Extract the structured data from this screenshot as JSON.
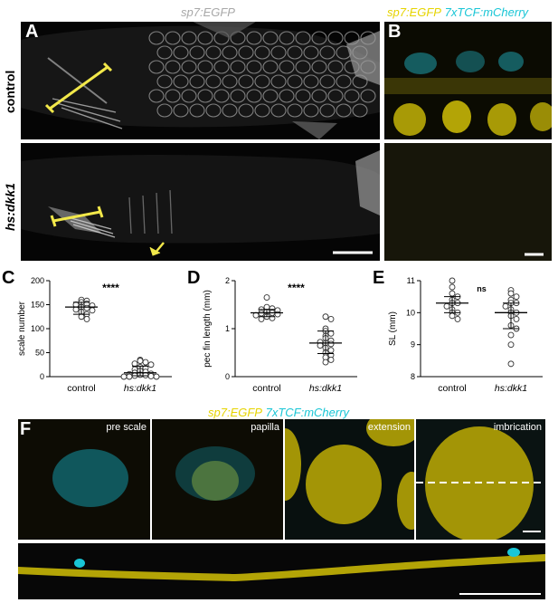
{
  "panel_A": {
    "letter": "A",
    "header": "sp7:EGFP",
    "row_labels": [
      "control",
      "hs:dkk1"
    ]
  },
  "panel_B": {
    "letter": "B",
    "header_part1": "sp7:EGFP",
    "header_part2": "7xTCF:mCherry"
  },
  "panel_F": {
    "letter": "F",
    "header_part1": "sp7:EGFP",
    "header_part2": "7xTCF:mCherry",
    "stages": [
      "pre scale",
      "papilla",
      "extension",
      "imbrication"
    ]
  },
  "colors": {
    "egfp_yellow": "#e6d400",
    "mcherry_cyan": "#19c6d6",
    "scale_bar_yellow": "#f2e84a"
  },
  "chart_data": [
    {
      "panel": "C",
      "type": "scatter",
      "ylabel": "scale number",
      "categories": [
        "control",
        "hs:dkk1"
      ],
      "ylim": [
        0,
        200
      ],
      "yticks": [
        0,
        50,
        100,
        150,
        200
      ],
      "significance": "****",
      "series": [
        {
          "values": [
            160,
            158,
            155,
            152,
            150,
            148,
            145,
            143,
            140,
            138,
            135,
            130,
            125,
            120
          ]
        },
        {
          "values": [
            35,
            33,
            30,
            27,
            25,
            20,
            18,
            15,
            12,
            10,
            8,
            6,
            5,
            4,
            3,
            2,
            1,
            0,
            0,
            0
          ]
        }
      ],
      "summary": [
        {
          "median": 145,
          "q1": 130,
          "q3": 155
        },
        {
          "median": 8,
          "q1": 2,
          "q3": 22
        }
      ]
    },
    {
      "panel": "D",
      "type": "scatter",
      "ylabel": "pec fin length (mm)",
      "categories": [
        "control",
        "hs:dkk1"
      ],
      "ylim": [
        0,
        2
      ],
      "yticks": [
        0,
        1,
        2
      ],
      "significance": "****",
      "series": [
        {
          "values": [
            1.65,
            1.45,
            1.42,
            1.4,
            1.38,
            1.35,
            1.33,
            1.32,
            1.3,
            1.28,
            1.25,
            1.22,
            1.2
          ]
        },
        {
          "values": [
            1.25,
            1.2,
            1.0,
            0.95,
            0.9,
            0.85,
            0.8,
            0.75,
            0.72,
            0.7,
            0.68,
            0.65,
            0.6,
            0.55,
            0.5,
            0.45,
            0.4,
            0.35,
            0.3
          ]
        }
      ],
      "summary": [
        {
          "median": 1.33,
          "q1": 1.25,
          "q3": 1.4
        },
        {
          "median": 0.7,
          "q1": 0.48,
          "q3": 0.95
        }
      ]
    },
    {
      "panel": "E",
      "type": "scatter",
      "ylabel": "SL (mm)",
      "categories": [
        "control",
        "hs:dkk1"
      ],
      "ylim": [
        8,
        11
      ],
      "yticks": [
        8,
        9,
        10,
        11
      ],
      "significance": "ns",
      "series": [
        {
          "values": [
            11.0,
            10.8,
            10.6,
            10.5,
            10.4,
            10.3,
            10.3,
            10.2,
            10.1,
            10.0,
            10.0,
            9.9,
            9.8
          ]
        },
        {
          "values": [
            10.7,
            10.6,
            10.5,
            10.4,
            10.3,
            10.3,
            10.2,
            10.1,
            10.0,
            10.0,
            9.9,
            9.8,
            9.6,
            9.5,
            9.3,
            9.0,
            8.4
          ]
        }
      ],
      "summary": [
        {
          "median": 10.3,
          "q1": 10.0,
          "q3": 10.5
        },
        {
          "median": 10.0,
          "q1": 9.5,
          "q3": 10.3
        }
      ]
    }
  ]
}
